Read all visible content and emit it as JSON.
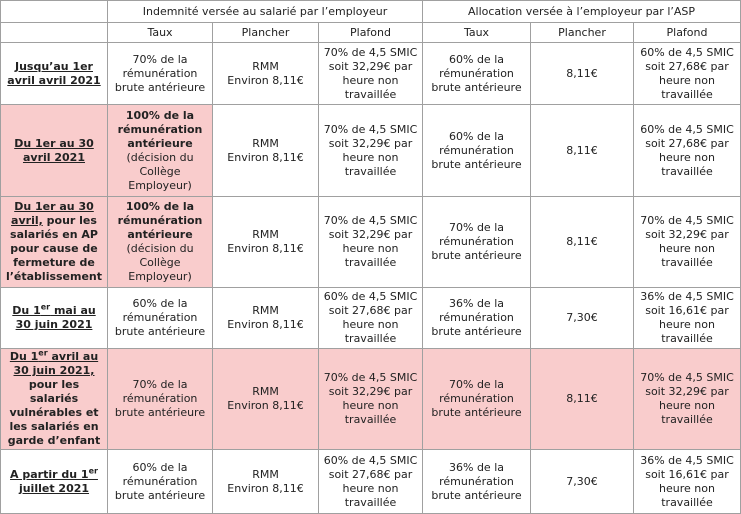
{
  "header": {
    "groups": [
      "Indemnité versée au salarié par l’employeur",
      "Allocation versée à l’employeur par l’ASP"
    ],
    "columns": [
      "Taux",
      "Plancher",
      "Plafond",
      "Taux",
      "Plancher",
      "Plafond"
    ]
  },
  "rows": [
    {
      "label": {
        "link": [
          "Jusqu’au 1er avril avril 2021"
        ]
      },
      "cells": [
        [
          "70% de la rémunération brute antérieure"
        ],
        [
          "RMM",
          "Environ 8,11€"
        ],
        [
          "70% de 4,5 SMIC soit 32,29€ par heure non travaillée"
        ],
        [
          "60% de la rémunération brute antérieure"
        ],
        [
          "8,11€"
        ],
        [
          "60% de 4,5 SMIC soit 27,68€ par heure non travaillée"
        ]
      ]
    },
    {
      "label": {
        "link": [
          "Du 1er au 30 avril 2021"
        ]
      },
      "taux_bold": true,
      "cells": [
        [
          "100% de la rémunération antérieure",
          "(décision du Collège Employeur)"
        ],
        [
          "RMM",
          "Environ 8,11€"
        ],
        [
          "70% de 4,5 SMIC soit 32,29€ par heure non travaillée"
        ],
        [
          "60% de la rémunération brute antérieure"
        ],
        [
          "8,11€"
        ],
        [
          "60% de 4,5 SMIC soit 27,68€ par heure non travaillée"
        ]
      ]
    },
    {
      "label": {
        "link": [
          "Du 1er au 30 avril,"
        ],
        "rest": "pour les salariés en AP pour cause de fermeture de l’établissement"
      },
      "taux_bold": true,
      "cells": [
        [
          "100% de la rémunération antérieure",
          "(décision du Collège Employeur)"
        ],
        [
          "RMM",
          "Environ 8,11€"
        ],
        [
          "70% de 4,5 SMIC soit 32,29€ par heure non travaillée"
        ],
        [
          "70% de la rémunération brute antérieure"
        ],
        [
          "8,11€"
        ],
        [
          "70% de 4,5 SMIC soit 32,29€ par heure non travaillée"
        ]
      ]
    },
    {
      "label": {
        "link": [
          "Du 1",
          "er",
          " mai au 30 juin 2021"
        ]
      },
      "cells": [
        [
          "60% de la rémunération brute antérieure"
        ],
        [
          "RMM",
          "Environ 8,11€"
        ],
        [
          "60% de 4,5 SMIC soit 27,68€ par heure non travaillée"
        ],
        [
          "36% de la rémunération brute antérieure"
        ],
        [
          "7,30€"
        ],
        [
          "36% de 4,5 SMIC soit 16,61€ par heure non travaillée"
        ]
      ]
    },
    {
      "label": {
        "link": [
          "Du 1",
          "er",
          " avril au 30 juin 2021,"
        ],
        "rest": "pour les salariés vulnérables et les salariés en garde d’enfant"
      },
      "cells": [
        [
          "70% de la rémunération brute antérieure"
        ],
        [
          "RMM",
          "Environ 8,11€"
        ],
        [
          "70% de 4,5 SMIC soit 32,29€ par heure non travaillée"
        ],
        [
          "70% de la rémunération brute antérieure"
        ],
        [
          "8,11€"
        ],
        [
          "70% de 4,5 SMIC soit 32,29€ par heure non travaillée"
        ]
      ]
    },
    {
      "label": {
        "link": [
          "A partir du 1",
          "er",
          " juillet 2021"
        ]
      },
      "cells": [
        [
          "60% de la rémunération brute antérieure"
        ],
        [
          "RMM",
          "Environ 8,11€"
        ],
        [
          "60% de 4,5 SMIC soit 27,68€ par heure non travaillée"
        ],
        [
          "36% de la rémunération brute antérieure"
        ],
        [
          "7,30€"
        ],
        [
          "36% de 4,5 SMIC soit 16,61€ par heure non travaillée"
        ]
      ]
    }
  ]
}
